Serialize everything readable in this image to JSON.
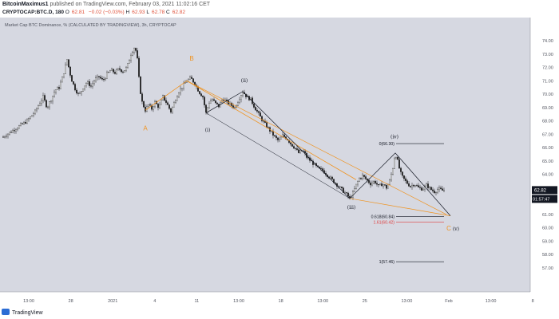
{
  "header": {
    "author": "BitcoinMaximus1",
    "published_text": "published on TradingView.com, February 03, 2021 11:02:16 CET",
    "symbol_line": "CRYPTOCAP:BTC.D, 180",
    "o": "62.81",
    "change": "−0.02 (−0.03%)",
    "h": "62.93",
    "l": "62.78",
    "c": "62.82"
  },
  "chart_data": {
    "type": "candlestick",
    "title": "Market Cap BTC Dominance, % (CALCULATED BY TRADINGVIEW), 3h, CRYPTOCAP",
    "x_tick_labels": [
      "13:00",
      "28",
      "2021",
      "4",
      "11",
      "13:00",
      "18",
      "13:00",
      "25",
      "13:00",
      "Feb",
      "13:00",
      "8",
      "13:00"
    ],
    "y_tick_labels": [
      "74.00",
      "73.00",
      "72.00",
      "71.00",
      "70.00",
      "69.00",
      "68.00",
      "67.00",
      "66.00",
      "65.00",
      "64.00",
      "63.00",
      "62.00",
      "61.00",
      "60.00",
      "59.00",
      "58.00",
      "57.00"
    ],
    "ylim": [
      56.4,
      74.9
    ],
    "grid": false,
    "last_price": "62.82",
    "countdown": "01:57:47",
    "price_path": [
      {
        "x": 0,
        "y": 66.8
      },
      {
        "x": 10,
        "y": 67.2
      },
      {
        "x": 20,
        "y": 67.6
      },
      {
        "x": 30,
        "y": 68.0
      },
      {
        "x": 40,
        "y": 68.7
      },
      {
        "x": 50,
        "y": 69.8
      },
      {
        "x": 55,
        "y": 69.0
      },
      {
        "x": 60,
        "y": 69.6
      },
      {
        "x": 65,
        "y": 70.3
      },
      {
        "x": 70,
        "y": 70.5
      },
      {
        "x": 75,
        "y": 71.4
      },
      {
        "x": 80,
        "y": 72.6
      },
      {
        "x": 85,
        "y": 71.2
      },
      {
        "x": 90,
        "y": 70.4
      },
      {
        "x": 95,
        "y": 69.9
      },
      {
        "x": 100,
        "y": 70.5
      },
      {
        "x": 105,
        "y": 70.9
      },
      {
        "x": 110,
        "y": 70.6
      },
      {
        "x": 115,
        "y": 71.1
      },
      {
        "x": 120,
        "y": 71.3
      },
      {
        "x": 125,
        "y": 71.0
      },
      {
        "x": 130,
        "y": 71.5
      },
      {
        "x": 135,
        "y": 71.8
      },
      {
        "x": 140,
        "y": 71.6
      },
      {
        "x": 145,
        "y": 71.9
      },
      {
        "x": 150,
        "y": 71.7
      },
      {
        "x": 155,
        "y": 72.0
      },
      {
        "x": 160,
        "y": 73.0
      },
      {
        "x": 165,
        "y": 73.6
      },
      {
        "x": 168,
        "y": 72.6
      },
      {
        "x": 171,
        "y": 70.5
      },
      {
        "x": 174,
        "y": 69.4
      },
      {
        "x": 178,
        "y": 68.8
      },
      {
        "x": 182,
        "y": 69.2
      },
      {
        "x": 186,
        "y": 68.9
      },
      {
        "x": 190,
        "y": 69.4
      },
      {
        "x": 195,
        "y": 69.0
      },
      {
        "x": 200,
        "y": 69.8
      },
      {
        "x": 205,
        "y": 69.3
      },
      {
        "x": 210,
        "y": 68.7
      },
      {
        "x": 215,
        "y": 69.5
      },
      {
        "x": 220,
        "y": 70.2
      },
      {
        "x": 225,
        "y": 70.6
      },
      {
        "x": 230,
        "y": 71.0
      },
      {
        "x": 235,
        "y": 71.2
      },
      {
        "x": 240,
        "y": 70.8
      },
      {
        "x": 245,
        "y": 70.2
      },
      {
        "x": 250,
        "y": 69.8
      },
      {
        "x": 254,
        "y": 68.6
      },
      {
        "x": 258,
        "y": 69.4
      },
      {
        "x": 262,
        "y": 69.6
      },
      {
        "x": 266,
        "y": 69.3
      },
      {
        "x": 270,
        "y": 69.1
      },
      {
        "x": 275,
        "y": 69.7
      },
      {
        "x": 280,
        "y": 69.4
      },
      {
        "x": 285,
        "y": 69.2
      },
      {
        "x": 290,
        "y": 69.0
      },
      {
        "x": 295,
        "y": 69.6
      },
      {
        "x": 300,
        "y": 70.2
      },
      {
        "x": 305,
        "y": 69.8
      },
      {
        "x": 310,
        "y": 69.6
      },
      {
        "x": 315,
        "y": 69.0
      },
      {
        "x": 320,
        "y": 68.5
      },
      {
        "x": 325,
        "y": 68.0
      },
      {
        "x": 330,
        "y": 67.6
      },
      {
        "x": 335,
        "y": 67.2
      },
      {
        "x": 340,
        "y": 66.8
      },
      {
        "x": 345,
        "y": 66.5
      },
      {
        "x": 350,
        "y": 66.9
      },
      {
        "x": 355,
        "y": 66.7
      },
      {
        "x": 360,
        "y": 66.3
      },
      {
        "x": 365,
        "y": 66.0
      },
      {
        "x": 370,
        "y": 65.6
      },
      {
        "x": 375,
        "y": 65.8
      },
      {
        "x": 380,
        "y": 65.3
      },
      {
        "x": 385,
        "y": 65.0
      },
      {
        "x": 390,
        "y": 64.7
      },
      {
        "x": 395,
        "y": 64.4
      },
      {
        "x": 400,
        "y": 64.3
      },
      {
        "x": 405,
        "y": 64.0
      },
      {
        "x": 410,
        "y": 63.7
      },
      {
        "x": 415,
        "y": 63.4
      },
      {
        "x": 420,
        "y": 63.1
      },
      {
        "x": 425,
        "y": 62.8
      },
      {
        "x": 430,
        "y": 62.5
      },
      {
        "x": 434,
        "y": 62.2
      },
      {
        "x": 438,
        "y": 62.6
      },
      {
        "x": 442,
        "y": 63.2
      },
      {
        "x": 446,
        "y": 63.7
      },
      {
        "x": 450,
        "y": 63.9
      },
      {
        "x": 455,
        "y": 63.6
      },
      {
        "x": 460,
        "y": 63.3
      },
      {
        "x": 465,
        "y": 63.5
      },
      {
        "x": 470,
        "y": 63.1
      },
      {
        "x": 475,
        "y": 63.3
      },
      {
        "x": 480,
        "y": 63.0
      },
      {
        "x": 484,
        "y": 63.5
      },
      {
        "x": 488,
        "y": 64.5
      },
      {
        "x": 491,
        "y": 65.6
      },
      {
        "x": 494,
        "y": 65.0
      },
      {
        "x": 497,
        "y": 64.2
      },
      {
        "x": 500,
        "y": 63.8
      },
      {
        "x": 505,
        "y": 63.4
      },
      {
        "x": 510,
        "y": 63.1
      },
      {
        "x": 515,
        "y": 63.3
      },
      {
        "x": 520,
        "y": 63.0
      },
      {
        "x": 525,
        "y": 62.9
      },
      {
        "x": 530,
        "y": 63.2
      },
      {
        "x": 535,
        "y": 62.9
      },
      {
        "x": 540,
        "y": 62.7
      },
      {
        "x": 545,
        "y": 62.9
      },
      {
        "x": 550,
        "y": 62.8
      },
      {
        "x": 553,
        "y": 62.82
      }
    ],
    "annotations": {
      "orange_labels": [
        "A",
        "B",
        "C"
      ],
      "wave_labels": [
        "(i)",
        "(ii)",
        "(iii)",
        "(iv)",
        "(v)"
      ],
      "fib_levels": [
        {
          "label": "0(66.30)",
          "value": 66.3,
          "color": "#131722"
        },
        {
          "label": "0.618(60.84)",
          "value": 60.84,
          "color": "#131722"
        },
        {
          "label": "1.61(60.42)",
          "value": 60.42,
          "color": "#e03c3c"
        },
        {
          "label": "1(57.46)",
          "value": 57.46,
          "color": "#131722"
        }
      ],
      "colors": {
        "orange": "#f0931f",
        "black": "#131722",
        "red": "#e03c3c"
      }
    }
  },
  "footer": {
    "brand": "TradingView"
  }
}
